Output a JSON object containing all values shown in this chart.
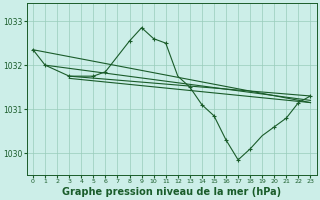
{
  "bg_color": "#cceee8",
  "grid_color": "#99ccbb",
  "line_color": "#1a5c2a",
  "xlabel": "Graphe pression niveau de la mer (hPa)",
  "xlabel_fontsize": 7,
  "ylim": [
    1029.5,
    1033.4
  ],
  "yticks": [
    1030,
    1031,
    1032,
    1033
  ],
  "xlim": [
    -0.5,
    23.5
  ],
  "xticks": [
    0,
    1,
    2,
    3,
    4,
    5,
    6,
    7,
    8,
    9,
    10,
    11,
    12,
    13,
    14,
    15,
    16,
    17,
    18,
    19,
    20,
    21,
    22,
    23
  ],
  "series": [
    {
      "x": [
        0,
        23
      ],
      "y": [
        1032.35,
        1031.15
      ],
      "markers": false
    },
    {
      "x": [
        1,
        23
      ],
      "y": [
        1032.0,
        1031.2
      ],
      "markers": false
    },
    {
      "x": [
        3,
        23
      ],
      "y": [
        1031.75,
        1031.3
      ],
      "markers": false
    },
    {
      "x": [
        3,
        23
      ],
      "y": [
        1031.7,
        1031.15
      ],
      "markers": false
    }
  ],
  "peaked_series": {
    "x": [
      0,
      1,
      3,
      5,
      6,
      7,
      8,
      9,
      10,
      11,
      12,
      13,
      14,
      15,
      16,
      17,
      18,
      19,
      20,
      21,
      22,
      23
    ],
    "y": [
      1032.35,
      1032.0,
      1031.75,
      1031.75,
      1031.85,
      1032.2,
      1032.55,
      1032.85,
      1032.6,
      1032.5,
      1031.75,
      1031.5,
      1031.1,
      1030.85,
      1030.3,
      1029.85,
      1030.1,
      1030.4,
      1030.6,
      1030.8,
      1031.15,
      1031.3
    ],
    "marker_x": [
      0,
      1,
      3,
      5,
      6,
      8,
      9,
      10,
      11,
      13,
      14,
      15,
      16,
      17,
      18,
      20,
      21,
      22,
      23
    ]
  }
}
